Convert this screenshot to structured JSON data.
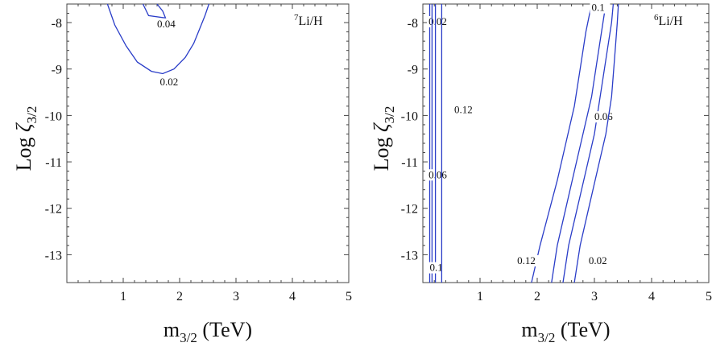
{
  "chart_data": [
    {
      "type": "contour",
      "panel_label": {
        "sup": "7",
        "text": "Li/H"
      },
      "xlabel": {
        "main": "m",
        "sub": "3/2",
        "rest": " (TeV)"
      },
      "ylabel": {
        "main": "Log ",
        "greek": "ζ",
        "sub": "3/2"
      },
      "xlim": [
        0,
        5
      ],
      "ylim": [
        -13.6,
        -7.6
      ],
      "xticks": [
        1,
        2,
        3,
        4,
        5
      ],
      "yticks": [
        -13,
        -12,
        -11,
        -10,
        -9,
        -8
      ],
      "xtick_labels": [
        "1",
        "2",
        "3",
        "4",
        "5"
      ],
      "ytick_labels": [
        "-13",
        "-12",
        "-11",
        "-10",
        "-9",
        "-8"
      ],
      "contours": [
        {
          "level": "0.04",
          "points": [
            [
              1.35,
              -7.6
            ],
            [
              1.45,
              -7.85
            ],
            [
              1.75,
              -7.9
            ],
            [
              1.7,
              -7.75
            ],
            [
              1.6,
              -7.6
            ]
          ],
          "label_at": [
            1.6,
            -8.1
          ]
        },
        {
          "level": "0.02",
          "points": [
            [
              0.72,
              -7.6
            ],
            [
              0.85,
              -8.05
            ],
            [
              1.05,
              -8.5
            ],
            [
              1.25,
              -8.85
            ],
            [
              1.5,
              -9.05
            ],
            [
              1.7,
              -9.1
            ],
            [
              1.9,
              -9.0
            ],
            [
              2.1,
              -8.75
            ],
            [
              2.25,
              -8.45
            ],
            [
              2.35,
              -8.15
            ],
            [
              2.45,
              -7.85
            ],
            [
              2.52,
              -7.6
            ]
          ],
          "label_at": [
            1.65,
            -9.35
          ]
        }
      ]
    },
    {
      "type": "contour",
      "panel_label": {
        "sup": "6",
        "text": "Li/H"
      },
      "xlabel": {
        "main": "m",
        "sub": "3/2",
        "rest": " (TeV)"
      },
      "ylabel": {
        "main": "Log ",
        "greek": "ζ",
        "sub": "3/2"
      },
      "xlim": [
        0,
        5
      ],
      "ylim": [
        -13.6,
        -7.6
      ],
      "xticks": [
        1,
        2,
        3,
        4,
        5
      ],
      "yticks": [
        -13,
        -12,
        -11,
        -10,
        -9,
        -8
      ],
      "xtick_labels": [
        "1",
        "2",
        "3",
        "4",
        "5"
      ],
      "ytick_labels": [
        "-13",
        "-12",
        "-11",
        "-10",
        "-9",
        "-8"
      ],
      "contours": [
        {
          "level": "0.02",
          "points": [
            [
              0.12,
              -7.6
            ],
            [
              0.12,
              -13.6
            ]
          ],
          "label_at": [
            0.1,
            -8.05
          ]
        },
        {
          "level": "0.06",
          "points": [
            [
              0.16,
              -7.6
            ],
            [
              0.16,
              -13.6
            ]
          ],
          "label_at": [
            0.1,
            -11.35
          ]
        },
        {
          "level": "0.1",
          "points": [
            [
              0.22,
              -7.6
            ],
            [
              0.22,
              -13.6
            ]
          ],
          "label_at": [
            0.12,
            -13.35
          ]
        },
        {
          "level": "0.12",
          "points": [
            [
              0.33,
              -7.6
            ],
            [
              0.33,
              -13.6
            ]
          ],
          "label_at": [
            0.55,
            -9.95
          ]
        },
        {
          "level": "0.12",
          "points": [
            [
              1.9,
              -13.6
            ],
            [
              2.05,
              -12.8
            ],
            [
              2.2,
              -12.1
            ],
            [
              2.35,
              -11.4
            ],
            [
              2.5,
              -10.6
            ],
            [
              2.65,
              -9.8
            ],
            [
              2.75,
              -9.0
            ],
            [
              2.85,
              -8.2
            ],
            [
              2.95,
              -7.6
            ]
          ],
          "label_at": [
            1.65,
            -13.2
          ]
        },
        {
          "level": "0.1",
          "points": [
            [
              2.25,
              -13.6
            ],
            [
              2.35,
              -12.8
            ],
            [
              2.5,
              -12.0
            ],
            [
              2.65,
              -11.2
            ],
            [
              2.8,
              -10.4
            ],
            [
              2.95,
              -9.6
            ],
            [
              3.05,
              -8.8
            ],
            [
              3.15,
              -8.0
            ],
            [
              3.2,
              -7.6
            ]
          ],
          "label_at": [
            2.95,
            -7.75
          ]
        },
        {
          "level": "0.06",
          "points": [
            [
              2.45,
              -13.6
            ],
            [
              2.55,
              -12.8
            ],
            [
              2.7,
              -12.0
            ],
            [
              2.85,
              -11.2
            ],
            [
              3.0,
              -10.4
            ],
            [
              3.1,
              -9.6
            ],
            [
              3.2,
              -8.8
            ],
            [
              3.3,
              -8.0
            ],
            [
              3.33,
              -7.6
            ]
          ],
          "label_at": [
            3.0,
            -10.1
          ]
        },
        {
          "level": "0.02",
          "points": [
            [
              2.65,
              -13.6
            ],
            [
              2.75,
              -12.8
            ],
            [
              2.9,
              -12.0
            ],
            [
              3.05,
              -11.2
            ],
            [
              3.2,
              -10.4
            ],
            [
              3.3,
              -9.6
            ],
            [
              3.35,
              -8.8
            ],
            [
              3.4,
              -8.0
            ],
            [
              3.42,
              -7.6
            ]
          ],
          "label_at": [
            2.9,
            -13.2
          ]
        }
      ]
    }
  ]
}
